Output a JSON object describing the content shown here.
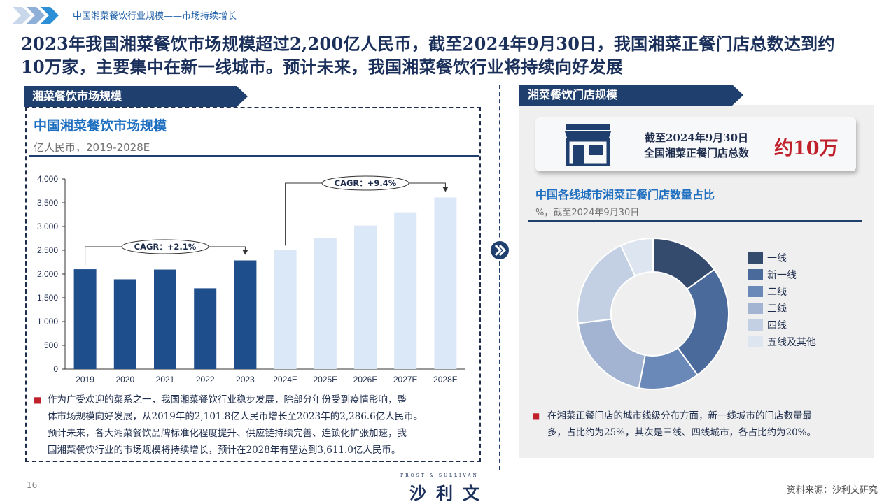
{
  "header": {
    "breadcrumb": "中国湘菜餐饮行业规模——市场持续增长",
    "headline_line1": "2023年我国湘菜餐饮市场规模超过2,200亿人民币，截至2024年9月30日，我国湘菜正餐门店总数达到约",
    "headline_line2": "10万家，主要集中在新一线城市。预计未来，我国湘菜餐饮行业将持续向好发展"
  },
  "left": {
    "banner": "湘菜餐饮市场规模",
    "title": "中国湘菜餐饮市场规模",
    "unit": "亿人民币，2019-2028E",
    "note_lines": [
      "作为广受欢迎的菜系之一，我国湘菜餐饮行业稳步发展，除部分年份受到疫情影响，整",
      "体市场规模向好发展，从2019年的2,101.8亿人民币增长至2023年的2,286.6亿人民币。",
      "预计未来，各大湘菜餐饮品牌标准化程度提升、供应链持续完善、连锁化扩张加速，我",
      "国湘菜餐饮行业的市场规模将持续增长，预计在2028年有望达到3,611.0亿人民币。"
    ]
  },
  "right": {
    "banner": "湘菜餐饮门店规模",
    "card_line1": "截至2024年9月30日",
    "card_line2": "全国湘菜正餐门店总数",
    "card_big": "约10万",
    "title": "中国各线城市湘菜正餐门店数量占比",
    "unit": "%，截至2024年9月30日",
    "note_line1": "在湘菜正餐门店的城市线级分布方面，新一线城市的门店数量最",
    "note_line2": "多，占比约为25%，其次是三线、四线城市，各占比约为20%。"
  },
  "footer": {
    "page": "16",
    "logo_top": "FROST & SULLIVAN",
    "logo_main": "沙利文",
    "source": "资料来源：沙利文研究"
  },
  "colors": {
    "navy": "#1f3f6e",
    "bar_actual": "#1f4e8c",
    "bar_forecast": "#dae8f7",
    "accent_red": "#c0202a",
    "title_blue": "#1f6fc0"
  },
  "chart_data": [
    {
      "type": "bar",
      "categories": [
        "2019",
        "2020",
        "2021",
        "2022",
        "2023",
        "2024E",
        "2025E",
        "2026E",
        "2027E",
        "2028E"
      ],
      "values": [
        2101.8,
        1890,
        2095,
        1700,
        2286.6,
        2510,
        2750,
        3020,
        3300,
        3611.0
      ],
      "forecast_from_index": 5,
      "ylim": [
        0,
        4000
      ],
      "yticks": [
        0,
        500,
        1000,
        1500,
        2000,
        2500,
        3000,
        3500,
        4000
      ],
      "ytick_labels": [
        "0",
        "500",
        "1,000",
        "1,500",
        "2,000",
        "2,500",
        "3,000",
        "3,500",
        "4,000"
      ],
      "annotations": [
        {
          "label": "CAGR：+2.1%",
          "from_index": 0,
          "to_index": 4
        },
        {
          "label": "CAGR：+9.4%",
          "from_index": 5,
          "to_index": 9
        }
      ]
    },
    {
      "type": "pie",
      "donut": true,
      "labels": [
        "一线",
        "新一线",
        "二线",
        "三线",
        "四线",
        "五线及其他"
      ],
      "values": [
        15,
        25,
        13,
        20,
        20,
        7
      ],
      "colors": [
        "#344b6e",
        "#4a6a9c",
        "#6a88b8",
        "#a2b4d2",
        "#c3cfe2",
        "#dde5f0"
      ]
    }
  ]
}
